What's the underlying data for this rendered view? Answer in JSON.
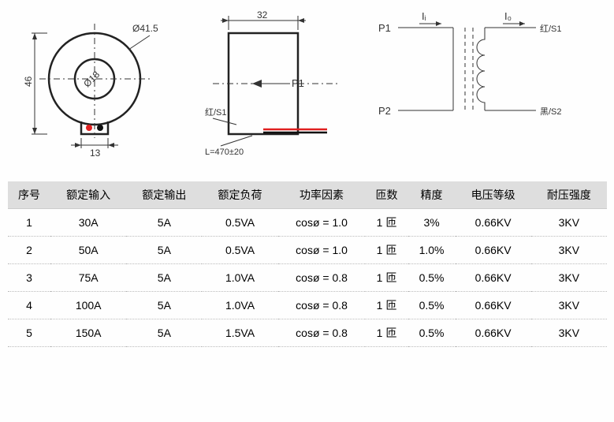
{
  "diagram": {
    "front": {
      "outer_dia": "Ø41.5",
      "inner_dia": "Ø18",
      "height": "46",
      "foot_width": "13"
    },
    "side": {
      "width": "32",
      "p1": "P1",
      "red_s1": "红/S1",
      "leadlen": "L=470±20"
    },
    "schematic": {
      "Ii": "Iᵢ",
      "Io": "I₀",
      "P1": "P1",
      "P2": "P2",
      "S1": "红/S1",
      "S2": "黑/S2"
    }
  },
  "table": {
    "headers": [
      "序号",
      "额定输入",
      "额定输出",
      "额定负荷",
      "功率因素",
      "匝数",
      "精度",
      "电压等级",
      "耐压强度"
    ],
    "rows": [
      [
        "1",
        "30A",
        "5A",
        "0.5VA",
        "cosø = 1.0",
        "1 匝",
        "3%",
        "0.66KV",
        "3KV"
      ],
      [
        "2",
        "50A",
        "5A",
        "0.5VA",
        "cosø = 1.0",
        "1 匝",
        "1.0%",
        "0.66KV",
        "3KV"
      ],
      [
        "3",
        "75A",
        "5A",
        "1.0VA",
        "cosø = 0.8",
        "1 匝",
        "0.5%",
        "0.66KV",
        "3KV"
      ],
      [
        "4",
        "100A",
        "5A",
        "1.0VA",
        "cosø = 0.8",
        "1 匝",
        "0.5%",
        "0.66KV",
        "3KV"
      ],
      [
        "5",
        "150A",
        "5A",
        "1.5VA",
        "cosø = 0.8",
        "1 匝",
        "0.5%",
        "0.66KV",
        "3KV"
      ]
    ]
  }
}
